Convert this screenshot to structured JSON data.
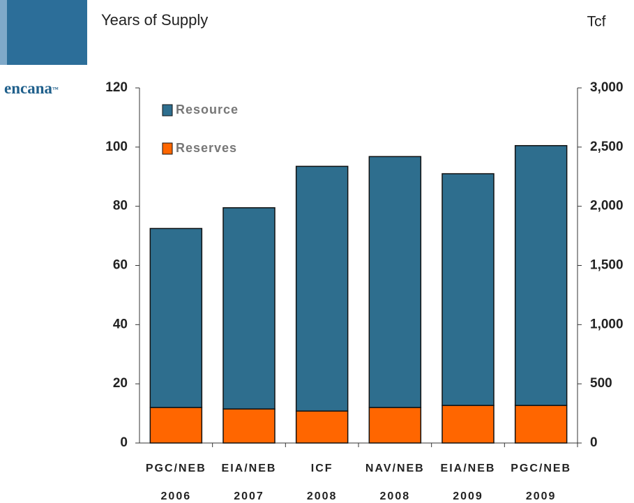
{
  "logo": {
    "text": "encana",
    "mark": "™"
  },
  "chart_data": {
    "type": "stacked_bar",
    "title": "Years of Supply",
    "y2label": "Tcf",
    "categories": [
      [
        "PGC/NEB",
        "2006"
      ],
      [
        "EIA/NEB",
        "2007"
      ],
      [
        "ICF",
        "2008"
      ],
      [
        "NAV/NEB",
        "2008"
      ],
      [
        "EIA/NEB",
        "2009"
      ],
      [
        "PGC/NEB",
        "2009"
      ]
    ],
    "series": [
      {
        "name": "Reserves",
        "color": "#ff6600",
        "values": [
          12,
          11.5,
          10.8,
          12,
          12.7,
          12.7
        ]
      },
      {
        "name": "Resource",
        "color": "#2e6e8e",
        "values": [
          60.5,
          68,
          82.7,
          84.8,
          78.3,
          87.8
        ]
      }
    ],
    "ylim": [
      0,
      120
    ],
    "yticks": [
      0,
      20,
      40,
      60,
      80,
      100,
      120
    ],
    "y2lim": [
      0,
      3000
    ],
    "y2ticks": [
      0,
      500,
      {
        "value": 1000,
        "label": "1,000"
      },
      {
        "value": 1500,
        "label": "1,500"
      },
      {
        "value": 2000,
        "label": "2,000"
      },
      {
        "value": 2500,
        "label": "2,500"
      },
      {
        "value": 3000,
        "label": "3,000"
      }
    ],
    "grid": false
  }
}
